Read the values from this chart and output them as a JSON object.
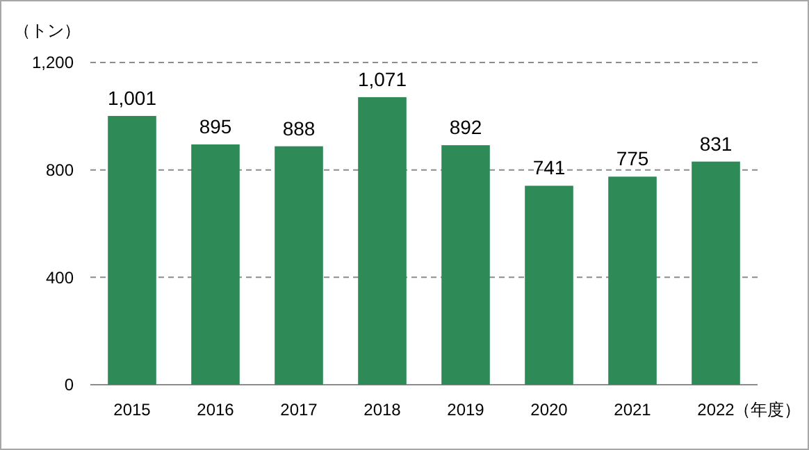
{
  "chart_data": {
    "type": "bar",
    "ylabel": "（トン）",
    "xlabel": "（年度）",
    "categories": [
      "2015",
      "2016",
      "2017",
      "2018",
      "2019",
      "2020",
      "2021",
      "2022"
    ],
    "values": [
      1001,
      895,
      888,
      1071,
      892,
      741,
      775,
      831
    ],
    "value_labels": [
      "1,001",
      "895",
      "888",
      "1,071",
      "892",
      "741",
      "775",
      "831"
    ],
    "color": "#2e8b57",
    "ylim": [
      0,
      1200
    ],
    "yticks": [
      0,
      400,
      800,
      {
        "value": 1200,
        "label": "1,200"
      }
    ],
    "grid": "y"
  }
}
